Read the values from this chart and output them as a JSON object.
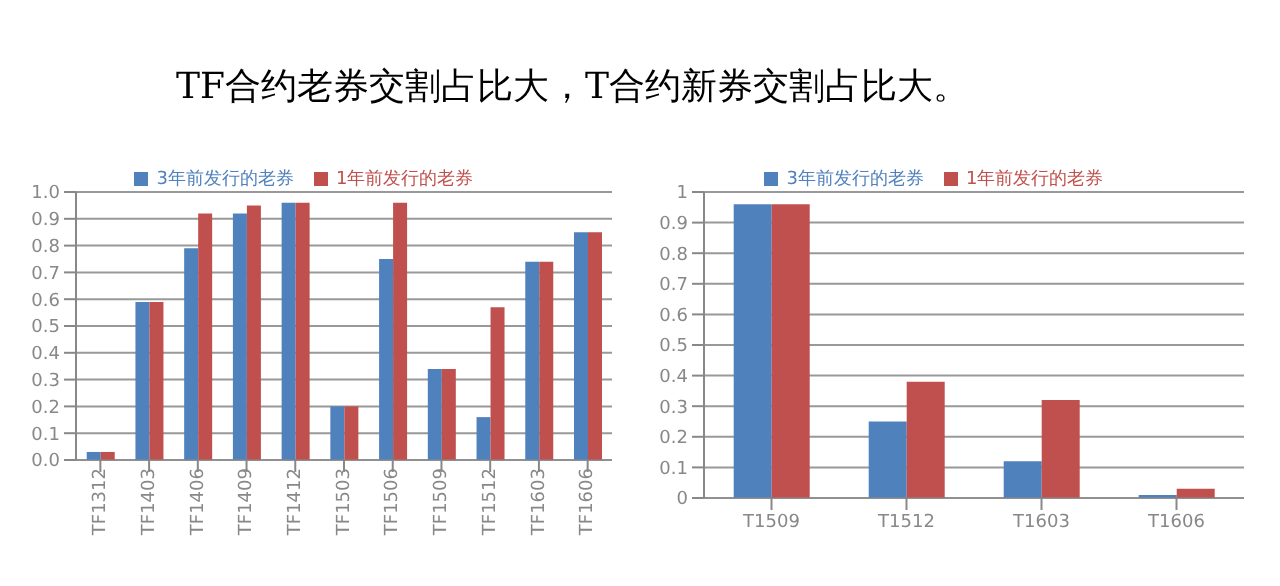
{
  "chart_data": [
    {
      "type": "bar",
      "title": "TF合约老券交割占比大，T合约新券交割占比大。",
      "categories": [
        "TF1312",
        "TF1403",
        "TF1406",
        "TF1409",
        "TF1412",
        "TF1503",
        "TF1506",
        "TF1509",
        "TF1512",
        "TF1603",
        "TF1606"
      ],
      "series": [
        {
          "name": "3年前发行的老券",
          "color": "#4f81bd",
          "values": [
            0.03,
            0.59,
            0.79,
            0.92,
            0.96,
            0.2,
            0.75,
            0.34,
            0.16,
            0.74,
            0.85
          ]
        },
        {
          "name": "1年前发行的老券",
          "color": "#c0504d",
          "values": [
            0.03,
            0.59,
            0.92,
            0.95,
            0.96,
            0.2,
            0.96,
            0.34,
            0.57,
            0.74,
            0.85
          ]
        }
      ],
      "ylim": [
        0,
        1
      ],
      "yticks": [
        {
          "value": 0,
          "label": "0.0"
        },
        {
          "value": 0.1,
          "label": "0.1"
        },
        {
          "value": 0.2,
          "label": "0.2"
        },
        {
          "value": 0.3,
          "label": "0.3"
        },
        {
          "value": 0.4,
          "label": "0.4"
        },
        {
          "value": 0.5,
          "label": "0.5"
        },
        {
          "value": 0.6,
          "label": "0.6"
        },
        {
          "value": 0.7,
          "label": "0.7"
        },
        {
          "value": 0.8,
          "label": "0.8"
        },
        {
          "value": 0.9,
          "label": "0.9"
        },
        {
          "value": 1,
          "label": "1.0"
        }
      ],
      "grid": "y",
      "legend": "top"
    },
    {
      "type": "bar",
      "categories": [
        "T1509",
        "T1512",
        "T1603",
        "T1606"
      ],
      "series": [
        {
          "name": "3年前发行的老券",
          "color": "#4f81bd",
          "values": [
            0.96,
            0.25,
            0.12,
            0.01
          ]
        },
        {
          "name": "1年前发行的老券",
          "color": "#c0504d",
          "values": [
            0.96,
            0.38,
            0.32,
            0.03
          ]
        }
      ],
      "ylim": [
        0,
        1
      ],
      "yticks": [
        0,
        0.1,
        0.2,
        0.3,
        0.4,
        0.5,
        0.6,
        0.7,
        0.8,
        0.9,
        1
      ],
      "grid": "y",
      "legend": "top"
    }
  ]
}
